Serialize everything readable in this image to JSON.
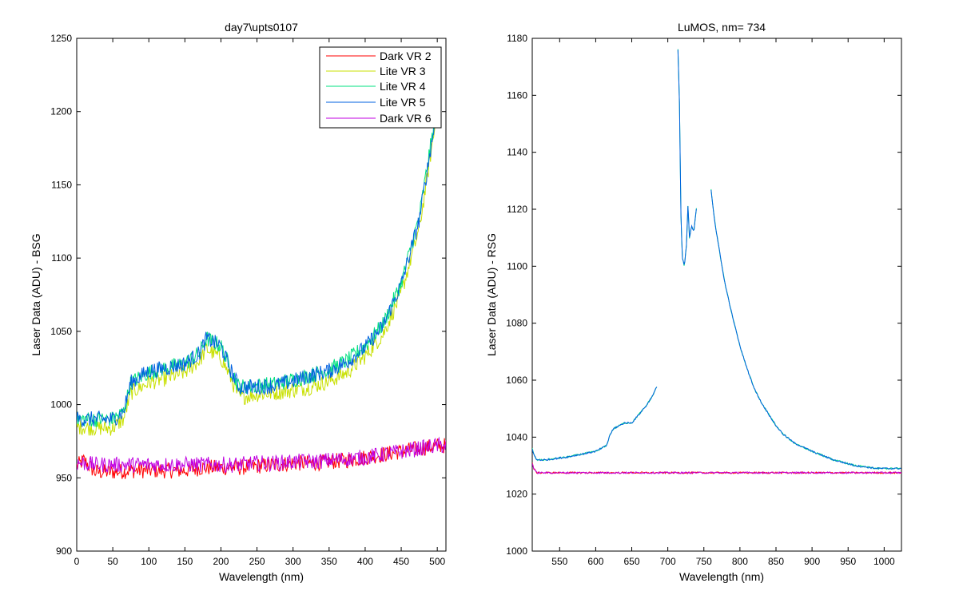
{
  "chart_data": [
    {
      "type": "line",
      "title": "day7\\upts0107",
      "xlabel": "Wavelength (nm)",
      "ylabel": "Laser Data (ADU) - BSG",
      "xlim": [
        0,
        512
      ],
      "ylim": [
        900,
        1250
      ],
      "xticks": [
        0,
        50,
        100,
        150,
        200,
        250,
        300,
        350,
        400,
        450,
        500
      ],
      "yticks": [
        900,
        950,
        1000,
        1050,
        1100,
        1150,
        1200,
        1250
      ],
      "grid": false,
      "legend_position": "top-right",
      "series": [
        {
          "name": "Dark VR 2",
          "color": "#ff0000",
          "x": [
            0,
            10,
            25,
            50,
            75,
            100,
            125,
            150,
            175,
            200,
            225,
            250,
            275,
            300,
            325,
            350,
            375,
            400,
            425,
            450,
            475,
            500,
            512
          ],
          "y": [
            958,
            962,
            954,
            954,
            955,
            955,
            955,
            955,
            957,
            957,
            957,
            958,
            959,
            960,
            960,
            961,
            962,
            964,
            966,
            968,
            970,
            972,
            972
          ]
        },
        {
          "name": "Lite VR 3",
          "color": "#c8e000",
          "x": [
            0,
            25,
            50,
            65,
            75,
            100,
            125,
            150,
            170,
            180,
            200,
            212,
            225,
            250,
            275,
            300,
            325,
            350,
            375,
            400,
            425,
            450,
            475,
            500
          ],
          "y": [
            985,
            984,
            984,
            990,
            1008,
            1015,
            1018,
            1022,
            1030,
            1038,
            1032,
            1020,
            1005,
            1007,
            1008,
            1010,
            1012,
            1016,
            1022,
            1033,
            1048,
            1076,
            1120,
            1200
          ]
        },
        {
          "name": "Lite VR 4",
          "color": "#00e080",
          "x": [
            0,
            25,
            50,
            65,
            75,
            100,
            125,
            150,
            170,
            180,
            200,
            212,
            225,
            250,
            275,
            300,
            325,
            350,
            375,
            400,
            425,
            450,
            475,
            500
          ],
          "y": [
            990,
            990,
            990,
            995,
            1015,
            1022,
            1025,
            1028,
            1035,
            1045,
            1040,
            1026,
            1012,
            1013,
            1014,
            1017,
            1020,
            1024,
            1030,
            1040,
            1055,
            1083,
            1128,
            1205
          ]
        },
        {
          "name": "Lite VR 5",
          "color": "#0060e0",
          "x": [
            0,
            25,
            50,
            65,
            75,
            100,
            125,
            150,
            170,
            180,
            200,
            212,
            225,
            250,
            275,
            300,
            325,
            350,
            375,
            400,
            425,
            450,
            475,
            500
          ],
          "y": [
            990,
            990,
            990,
            995,
            1015,
            1023,
            1025,
            1028,
            1035,
            1045,
            1040,
            1025,
            1012,
            1012,
            1013,
            1016,
            1020,
            1023,
            1029,
            1039,
            1054,
            1082,
            1126,
            1203
          ]
        },
        {
          "name": "Dark VR 6",
          "color": "#c000e0",
          "x": [
            0,
            10,
            25,
            50,
            75,
            100,
            125,
            150,
            175,
            200,
            225,
            250,
            275,
            300,
            325,
            350,
            375,
            400,
            425,
            450,
            475,
            500,
            512
          ],
          "y": [
            960,
            960,
            959,
            959,
            959,
            959,
            959,
            959,
            959,
            959,
            959,
            960,
            960,
            961,
            961,
            962,
            963,
            964,
            966,
            968,
            970,
            972,
            972
          ]
        }
      ]
    },
    {
      "type": "line",
      "title": "LuMOS, nm= 734",
      "xlabel": "Wavelength (nm)",
      "ylabel": "Laser Data (ADU) - RSG",
      "xlim": [
        512,
        1024
      ],
      "ylim": [
        1000,
        1180
      ],
      "xticks": [
        550,
        600,
        650,
        700,
        750,
        800,
        850,
        900,
        950,
        1000
      ],
      "yticks": [
        1000,
        1020,
        1040,
        1060,
        1080,
        1100,
        1120,
        1140,
        1160,
        1180
      ],
      "grid": false,
      "series": [
        {
          "color": "#00e080",
          "segments": [
            {
              "x": [
                512,
                514,
                518,
                530,
                560,
                600,
                615,
                620,
                625,
                640,
                650,
                660,
                670,
                680,
                685
              ],
              "y": [
                1036,
                1034,
                1032,
                1032,
                1033,
                1035,
                1037,
                1041,
                1043,
                1045,
                1045,
                1048,
                1051,
                1055,
                1058
              ]
            },
            {
              "x": [
                714,
                716,
                718,
                720,
                723,
                726,
                728,
                730,
                733,
                736,
                740
              ],
              "y": [
                1176,
                1160,
                1120,
                1103,
                1100,
                1108,
                1122,
                1110,
                1114,
                1112,
                1121
              ]
            },
            {
              "x": [
                760,
                763,
                766,
                770,
                775,
                780,
                790,
                800,
                810,
                820,
                830,
                840,
                850,
                860,
                875,
                900,
                930,
                960,
                990,
                1024
              ],
              "y": [
                1127,
                1120,
                1114,
                1108,
                1100,
                1093,
                1082,
                1072,
                1064,
                1057,
                1052,
                1048,
                1044,
                1041,
                1038,
                1035,
                1032,
                1030,
                1029,
                1029
              ]
            }
          ]
        },
        {
          "color": "#0060e0",
          "segments": [
            {
              "x": [
                512,
                514,
                518,
                530,
                560,
                600,
                615,
                620,
                625,
                640,
                650,
                660,
                670,
                680,
                685
              ],
              "y": [
                1036,
                1034,
                1032,
                1032,
                1033,
                1035,
                1037,
                1041,
                1043,
                1045,
                1045,
                1048,
                1051,
                1055,
                1058
              ]
            },
            {
              "x": [
                714,
                716,
                718,
                720,
                723,
                726,
                728,
                730,
                733,
                736,
                740
              ],
              "y": [
                1176,
                1160,
                1120,
                1103,
                1100,
                1108,
                1122,
                1110,
                1114,
                1112,
                1121
              ]
            },
            {
              "x": [
                760,
                763,
                766,
                770,
                775,
                780,
                790,
                800,
                810,
                820,
                830,
                840,
                850,
                860,
                875,
                900,
                930,
                960,
                990,
                1024
              ],
              "y": [
                1127,
                1120,
                1114,
                1108,
                1100,
                1093,
                1082,
                1072,
                1064,
                1057,
                1052,
                1048,
                1044,
                1041,
                1038,
                1035,
                1032,
                1030,
                1029,
                1029
              ]
            }
          ]
        },
        {
          "color": "#ff0000",
          "segments": [
            {
              "x": [
                512,
                514,
                518,
                525,
                600,
                700,
                800,
                900,
                1024
              ],
              "y": [
                1031,
                1029,
                1027.5,
                1027.5,
                1027.5,
                1027.5,
                1027.5,
                1027.5,
                1027.5
              ]
            }
          ]
        },
        {
          "color": "#c000e0",
          "segments": [
            {
              "x": [
                512,
                514,
                518,
                525,
                600,
                700,
                800,
                900,
                1024
              ],
              "y": [
                1031,
                1029,
                1027.5,
                1027.5,
                1027.5,
                1027.5,
                1027.5,
                1027.5,
                1027.5
              ]
            }
          ]
        }
      ]
    }
  ]
}
